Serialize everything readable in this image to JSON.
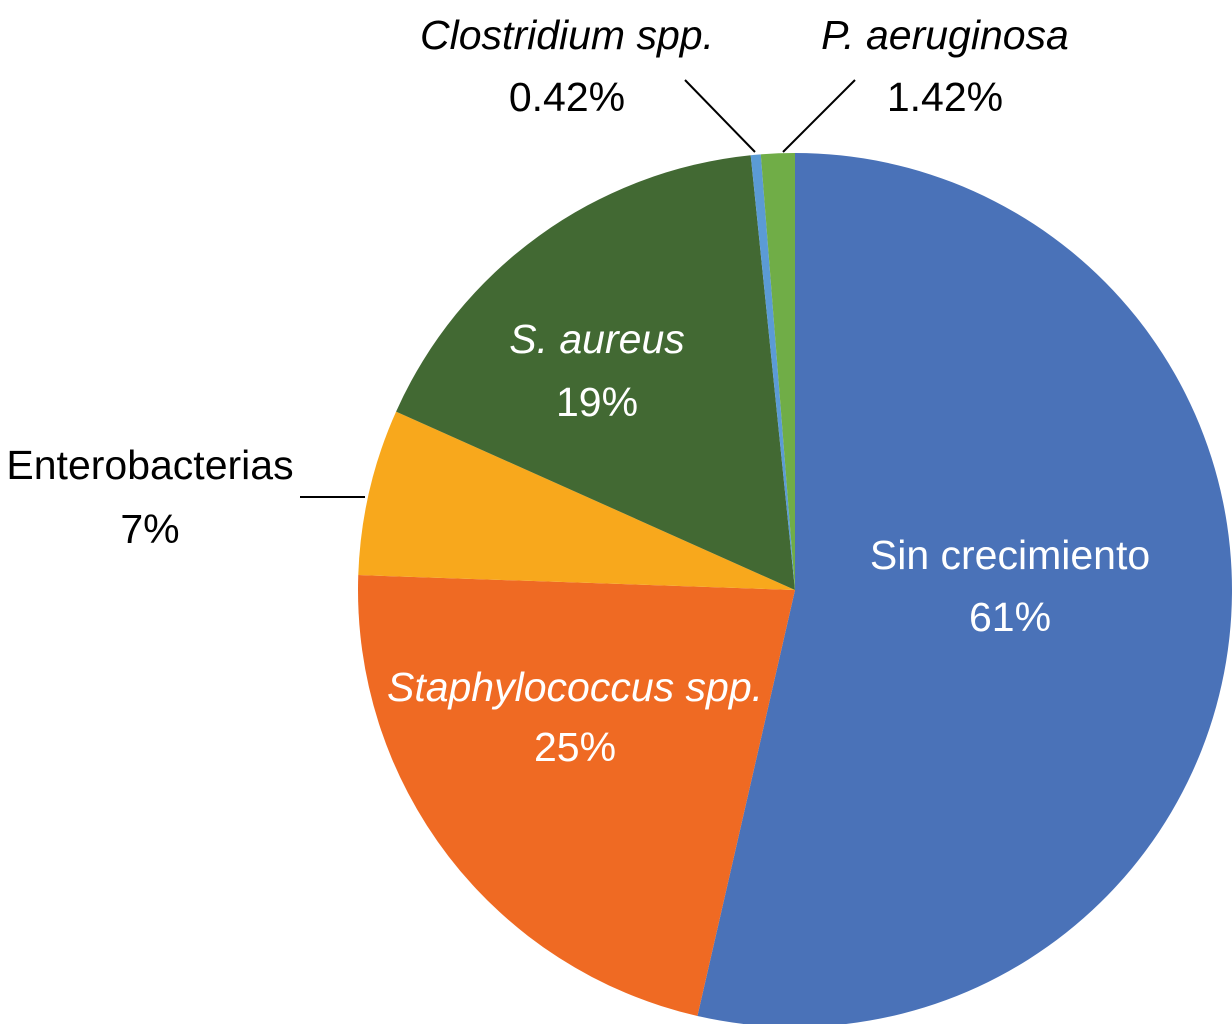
{
  "chart_data": {
    "type": "pie",
    "categories": [
      "Sin crecimiento",
      "Staphylococcus spp.",
      "Enterobacterias",
      "S. aureus",
      "Clostridium spp.",
      "P. aeruginosa"
    ],
    "values": [
      61,
      25,
      7,
      19,
      0.42,
      1.42
    ],
    "value_labels": [
      "61%",
      "25%",
      "7%",
      "19%",
      "0.42%",
      "1.42%"
    ],
    "colors": [
      "#4a72b8",
      "#ef6a23",
      "#f8a81c",
      "#426933",
      "#5b9bd5",
      "#70ad47"
    ],
    "italic": [
      false,
      true,
      false,
      true,
      true,
      true
    ]
  }
}
